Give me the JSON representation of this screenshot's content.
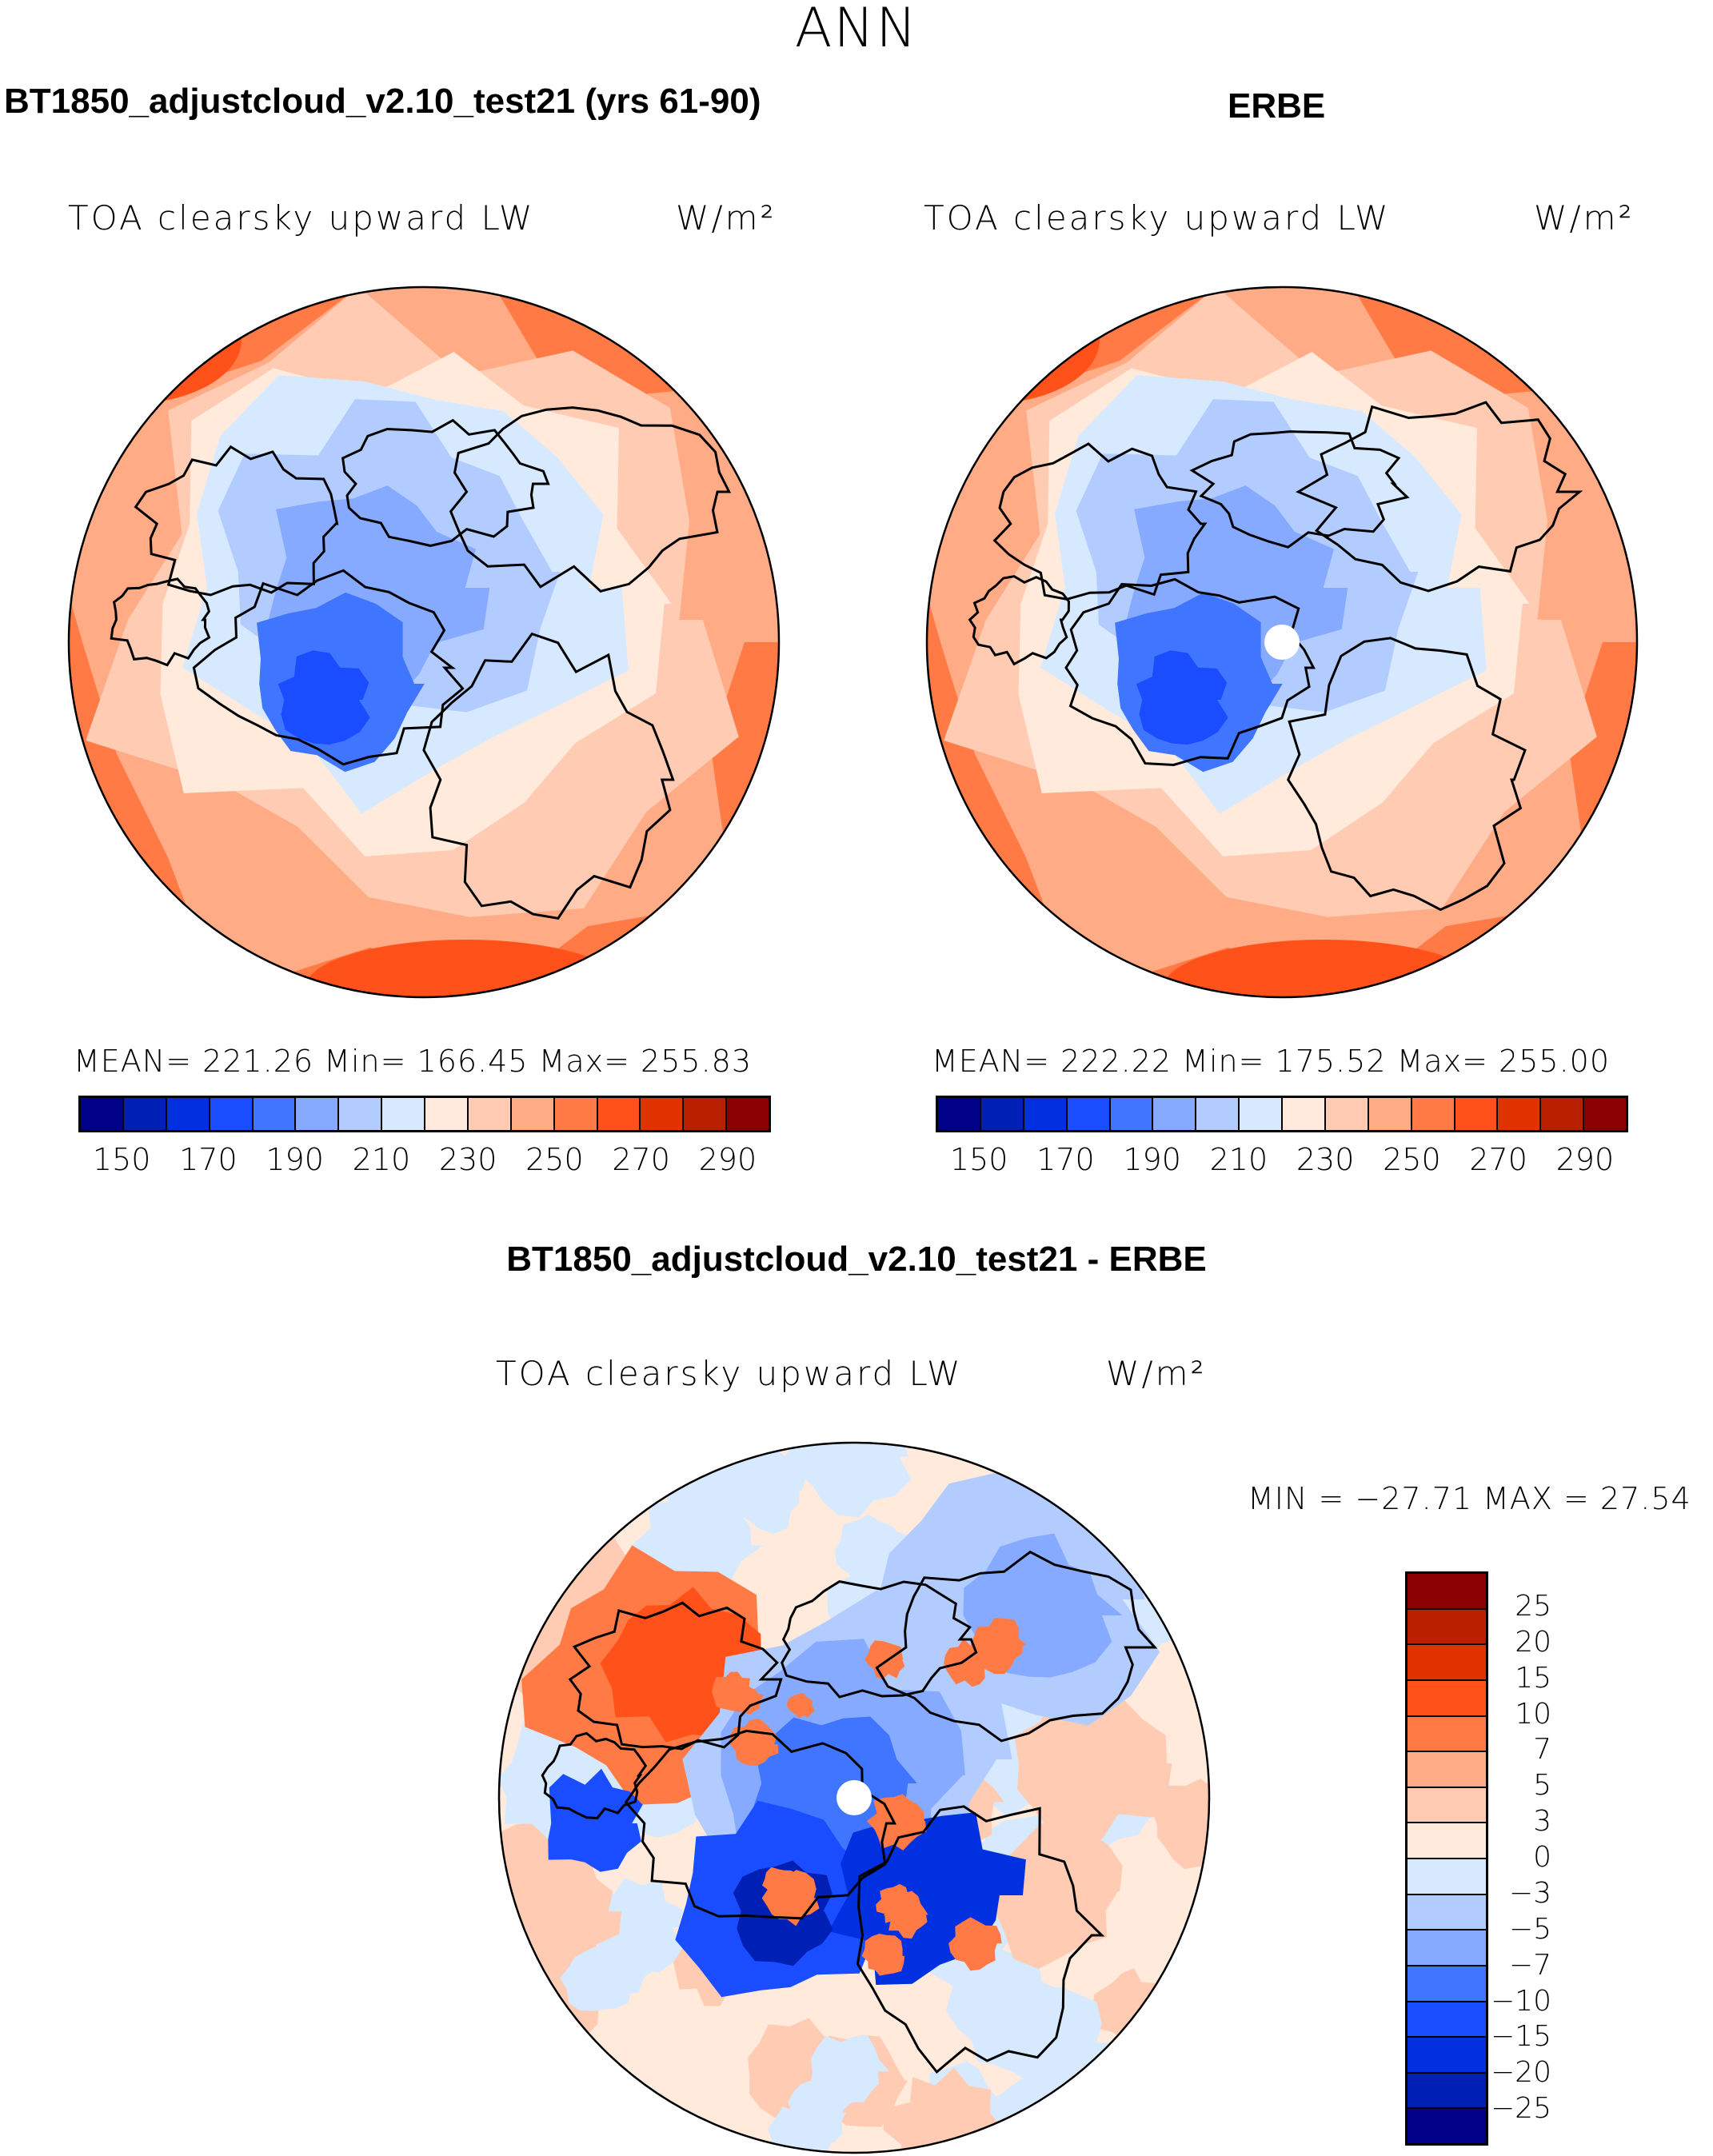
{
  "title": "ANN",
  "panels": {
    "model": {
      "header": "BT1850_adjustcloud_v2.10_test21 (yrs 61-90)",
      "variable": "TOA clearsky upward LW",
      "units": "W/m²",
      "stats": "MEAN=  221.26   Min=  166.45   Max=  255.83"
    },
    "obs": {
      "header": "ERBE",
      "variable": "TOA clearsky upward LW",
      "units": "W/m²",
      "stats": "MEAN=  222.22   Min=  175.52   Max=  255.00"
    },
    "diff": {
      "header": "BT1850_adjustcloud_v2.10_test21 - ERBE",
      "variable": "TOA clearsky upward LW",
      "units": "W/m²",
      "stats": "MIN = −27.71  MAX =   27.54"
    }
  },
  "colorbar_abs": {
    "labels": [
      "150",
      "170",
      "190",
      "210",
      "230",
      "250",
      "270",
      "290"
    ],
    "levels": [
      140,
      150,
      160,
      170,
      180,
      190,
      200,
      210,
      220,
      230,
      240,
      250,
      260,
      270,
      280,
      290
    ]
  },
  "colorbar_diff": {
    "labels": [
      "25",
      "20",
      "15",
      "10",
      "7",
      "5",
      "3",
      "0",
      "−3",
      "−5",
      "−7",
      "−10",
      "−15",
      "−20",
      "−25"
    ]
  },
  "colors": [
    "#000088",
    "#001fb5",
    "#0030e0",
    "#1a4dff",
    "#4075ff",
    "#85aaff",
    "#b3ccff",
    "#d6e9ff",
    "#ffeadb",
    "#ffcbb3",
    "#ffab85",
    "#ff7a45",
    "#ff5119",
    "#e03300",
    "#b82000",
    "#8b0000"
  ]
}
